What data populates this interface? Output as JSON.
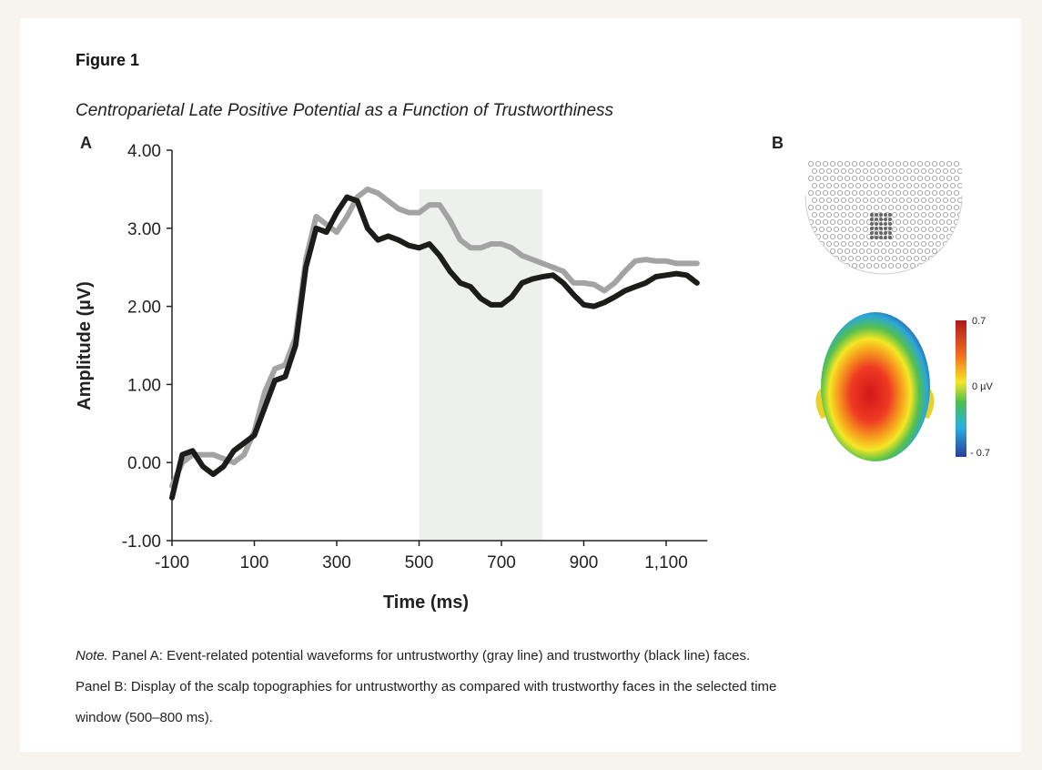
{
  "figure_label": "Figure 1",
  "figure_title": "Centroparietal Late Positive Potential as a Function of Trustworthiness",
  "chart_data": {
    "type": "line",
    "panel_label": "A",
    "x_label": "Time (ms)",
    "y_label": "Amplitude (µV)",
    "x": [
      -100,
      -75,
      -50,
      -25,
      0,
      25,
      50,
      75,
      100,
      125,
      150,
      175,
      200,
      225,
      250,
      275,
      300,
      325,
      350,
      375,
      400,
      425,
      450,
      475,
      500,
      525,
      550,
      575,
      600,
      625,
      650,
      675,
      700,
      725,
      750,
      775,
      800,
      825,
      850,
      875,
      900,
      925,
      950,
      975,
      1000,
      1025,
      1050,
      1075,
      1100,
      1125,
      1150,
      1175
    ],
    "series": [
      {
        "color": "#1c1c1a",
        "values": [
          -0.45,
          0.1,
          0.15,
          -0.05,
          -0.15,
          -0.05,
          0.15,
          0.25,
          0.35,
          0.7,
          1.05,
          1.1,
          1.5,
          2.5,
          3.0,
          2.95,
          3.2,
          3.4,
          3.35,
          3.0,
          2.85,
          2.9,
          2.85,
          2.78,
          2.75,
          2.8,
          2.65,
          2.45,
          2.3,
          2.25,
          2.1,
          2.02,
          2.02,
          2.12,
          2.3,
          2.35,
          2.38,
          2.4,
          2.3,
          2.15,
          2.02,
          2.0,
          2.05,
          2.12,
          2.2,
          2.25,
          2.3,
          2.38,
          2.4,
          2.42,
          2.4,
          2.3
        ]
      },
      {
        "color": "#a3a3a3",
        "values": [
          -0.3,
          0.0,
          0.1,
          0.1,
          0.1,
          0.05,
          0.0,
          0.1,
          0.4,
          0.9,
          1.2,
          1.25,
          1.6,
          2.6,
          3.15,
          3.05,
          2.95,
          3.15,
          3.4,
          3.5,
          3.45,
          3.35,
          3.25,
          3.2,
          3.2,
          3.3,
          3.3,
          3.1,
          2.85,
          2.75,
          2.75,
          2.8,
          2.8,
          2.75,
          2.65,
          2.6,
          2.55,
          2.5,
          2.45,
          2.3,
          2.3,
          2.28,
          2.2,
          2.3,
          2.45,
          2.58,
          2.6,
          2.58,
          2.58,
          2.55,
          2.55,
          2.55
        ]
      }
    ],
    "shade": {
      "x": [
        500,
        800
      ],
      "y": [
        -1,
        3.5
      ],
      "color": "#eef0ee"
    },
    "xlim": [
      -100,
      1200
    ],
    "ylim": [
      -1,
      4
    ],
    "xticks": [
      -100,
      100,
      300,
      500,
      700,
      900,
      {
        "value": 1100,
        "label": "1,100"
      }
    ],
    "yticks": [
      {
        "value": -1,
        "label": "-1.00"
      },
      {
        "value": 0,
        "label": "0.00"
      },
      {
        "value": 1,
        "label": "1.00"
      },
      {
        "value": 2,
        "label": "2.00"
      },
      {
        "value": 3,
        "label": "3.00"
      },
      {
        "value": 4,
        "label": "4.00"
      }
    ]
  },
  "panel_b": {
    "label": "B",
    "colorbar_labels": [
      "0.7",
      "0 µV",
      "- 0.7"
    ]
  },
  "note": {
    "label": "Note.",
    "lines": [
      " Panel A: Event-related potential waveforms for untrustworthy (gray line) and trustworthy (black line) faces.",
      "Panel B: Display of the scalp topographies for untrustworthy as compared with trustworthy faces in the selected time",
      "window (500–800 ms)."
    ]
  }
}
